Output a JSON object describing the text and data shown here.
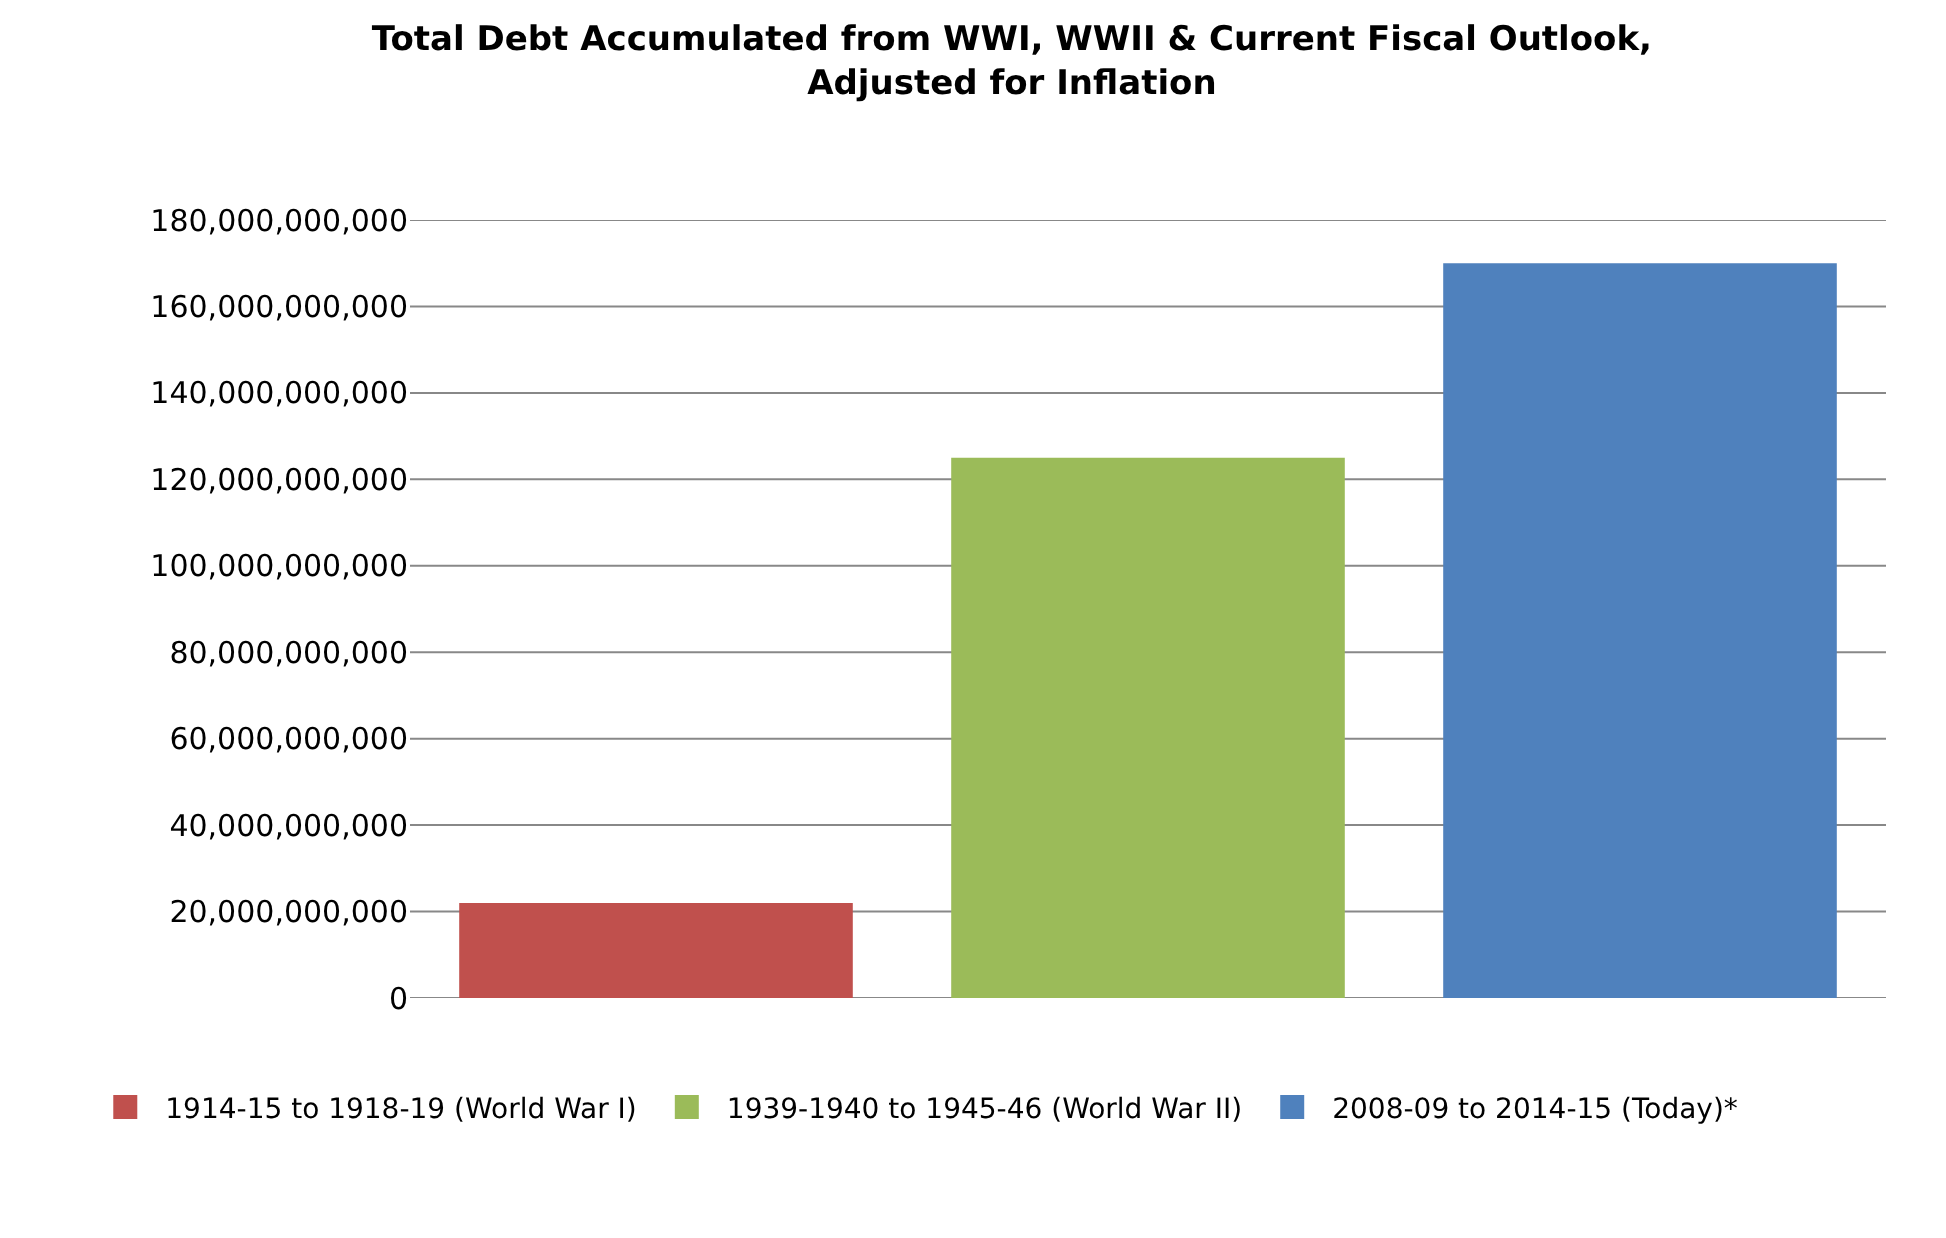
{
  "chart_data": {
    "type": "bar",
    "title": "Total Debt Accumulated from WWI, WWII & Current Fiscal Outlook,\nAdjusted for Inflation",
    "categories": [
      null,
      null,
      null
    ],
    "series": [
      {
        "name": "1914-15 to 1918-19 (World War I)",
        "color": "#c0504d",
        "values": [
          22000000000,
          null,
          null
        ]
      },
      {
        "name": "1939-1940 to 1945-46 (World War II)",
        "color": "#9bbb59",
        "values": [
          null,
          125000000000,
          null
        ]
      },
      {
        "name": "2008-09 to 2014-15 (Today)*",
        "color": "#4f81bd",
        "values": [
          null,
          null,
          170000000000
        ]
      }
    ],
    "ylim": [
      0,
      180000000000
    ],
    "yticks": [
      {
        "value": 0,
        "label": "0"
      },
      {
        "value": 20000000000,
        "label": "20,000,000,000"
      },
      {
        "value": 40000000000,
        "label": "40,000,000,000"
      },
      {
        "value": 60000000000,
        "label": "60,000,000,000"
      },
      {
        "value": 80000000000,
        "label": "80,000,000,000"
      },
      {
        "value": 100000000000,
        "label": "100,000,000,000"
      },
      {
        "value": 120000000000,
        "label": "120,000,000,000"
      },
      {
        "value": 140000000000,
        "label": "140,000,000,000"
      },
      {
        "value": 160000000000,
        "label": "160,000,000,000"
      },
      {
        "value": 180000000000,
        "label": "180,000,000,000"
      }
    ],
    "grid": "y",
    "legend": "bottom"
  }
}
